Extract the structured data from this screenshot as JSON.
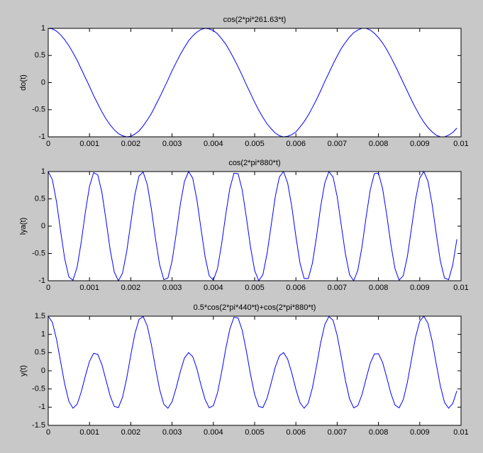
{
  "chart_data": [
    {
      "type": "line",
      "title": "cos(2*pi*261.63*t)",
      "y_label": "do(t)",
      "color": "#0000ff",
      "x": [
        0,
        0.0001,
        0.0002,
        0.0003,
        0.0004,
        0.0005,
        0.0006,
        0.0007,
        0.0008,
        0.0009,
        0.001,
        0.0011,
        0.0012,
        0.0013,
        0.0014,
        0.0015,
        0.0016,
        0.0017,
        0.0018,
        0.0019,
        0.002,
        0.0021,
        0.0022,
        0.0023,
        0.0024,
        0.0025,
        0.0026,
        0.0027,
        0.0028,
        0.0029,
        0.003,
        0.0031,
        0.0032,
        0.0033,
        0.0034,
        0.0035,
        0.0036,
        0.0037,
        0.0038,
        0.0039,
        0.004,
        0.0041,
        0.0042,
        0.0043,
        0.0044,
        0.0045,
        0.0046,
        0.0047,
        0.0048,
        0.0049,
        0.005,
        0.0051,
        0.0052,
        0.0053,
        0.0054,
        0.0055,
        0.0056,
        0.0057,
        0.0058,
        0.0059,
        0.006,
        0.0061,
        0.0062,
        0.0063,
        0.0064,
        0.0065,
        0.0066,
        0.0067,
        0.0068,
        0.0069,
        0.007,
        0.0071,
        0.0072,
        0.0073,
        0.0074,
        0.0075,
        0.0076,
        0.0077,
        0.0078,
        0.0079,
        0.008,
        0.0081,
        0.0082,
        0.0083,
        0.0084,
        0.0085,
        0.0086,
        0.0087,
        0.0088,
        0.0089,
        0.009,
        0.0091,
        0.0092,
        0.0093,
        0.0094,
        0.0095,
        0.0096,
        0.0097,
        0.0098,
        0.0099
      ],
      "values": [
        1,
        0.99,
        0.95,
        0.88,
        0.79,
        0.68,
        0.55,
        0.41,
        0.25,
        0.09,
        -0.07,
        -0.24,
        -0.39,
        -0.54,
        -0.67,
        -0.78,
        -0.87,
        -0.94,
        -0.98,
        -1,
        -0.99,
        -0.95,
        -0.89,
        -0.8,
        -0.69,
        -0.57,
        -0.42,
        -0.27,
        -0.11,
        0.05,
        0.22,
        0.37,
        0.52,
        0.65,
        0.77,
        0.86,
        0.93,
        0.98,
        1,
        0.99,
        0.96,
        0.9,
        0.81,
        0.71,
        0.58,
        0.44,
        0.29,
        0.13,
        -0.04,
        -0.2,
        -0.36,
        -0.51,
        -0.64,
        -0.76,
        -0.85,
        -0.93,
        -0.98,
        -1,
        -0.99,
        -0.96,
        -0.91,
        -0.82,
        -0.72,
        -0.6,
        -0.46,
        -0.31,
        -0.15,
        0.02,
        0.18,
        0.34,
        0.49,
        0.63,
        0.74,
        0.84,
        0.92,
        0.97,
        1,
        1,
        0.97,
        0.91,
        0.83,
        0.73,
        0.61,
        0.47,
        0.32,
        0.16,
        0,
        -0.16,
        -0.32,
        -0.47,
        -0.61,
        -0.73,
        -0.83,
        -0.91,
        -0.97,
        -1,
        -1,
        -0.97,
        -0.92,
        -0.84
      ],
      "xlim": [
        0,
        0.01
      ],
      "xticks": [
        0,
        0.001,
        0.002,
        0.003,
        0.004,
        0.005,
        0.006,
        0.007,
        0.008,
        0.009,
        0.01
      ],
      "ylim": [
        -1,
        1
      ],
      "yticks": [
        -1,
        -0.5,
        0,
        0.5,
        1
      ]
    },
    {
      "type": "line",
      "title": "cos(2*pi*880*t)",
      "y_label": "lya(t)",
      "color": "#0000ff",
      "x": [
        0,
        0.0001,
        0.0002,
        0.0003,
        0.0004,
        0.0005,
        0.0006,
        0.0007,
        0.0008,
        0.0009,
        0.001,
        0.0011,
        0.0012,
        0.0013,
        0.0014,
        0.0015,
        0.0016,
        0.0017,
        0.0018,
        0.0019,
        0.002,
        0.0021,
        0.0022,
        0.0023,
        0.0024,
        0.0025,
        0.0026,
        0.0027,
        0.0028,
        0.0029,
        0.003,
        0.0031,
        0.0032,
        0.0033,
        0.0034,
        0.0035,
        0.0036,
        0.0037,
        0.0038,
        0.0039,
        0.004,
        0.0041,
        0.0042,
        0.0043,
        0.0044,
        0.0045,
        0.0046,
        0.0047,
        0.0048,
        0.0049,
        0.005,
        0.0051,
        0.0052,
        0.0053,
        0.0054,
        0.0055,
        0.0056,
        0.0057,
        0.0058,
        0.0059,
        0.006,
        0.0061,
        0.0062,
        0.0063,
        0.0064,
        0.0065,
        0.0066,
        0.0067,
        0.0068,
        0.0069,
        0.007,
        0.0071,
        0.0072,
        0.0073,
        0.0074,
        0.0075,
        0.0076,
        0.0077,
        0.0078,
        0.0079,
        0.008,
        0.0081,
        0.0082,
        0.0083,
        0.0084,
        0.0085,
        0.0086,
        0.0087,
        0.0088,
        0.0089,
        0.009,
        0.0091,
        0.0092,
        0.0093,
        0.0094,
        0.0095,
        0.0096,
        0.0097,
        0.0098,
        0.0099
      ],
      "values": [
        1,
        0.85,
        0.45,
        -0.09,
        -0.6,
        -0.93,
        -0.99,
        -0.75,
        -0.29,
        0.26,
        0.73,
        0.98,
        0.94,
        0.62,
        0.11,
        -0.43,
        -0.84,
        -1,
        -0.86,
        -0.47,
        0.06,
        0.58,
        0.92,
        0.99,
        0.76,
        0.31,
        -0.24,
        -0.71,
        -0.98,
        -0.95,
        -0.64,
        -0.14,
        0.4,
        0.82,
        1,
        0.88,
        0.49,
        -0.04,
        -0.56,
        -0.91,
        -0.99,
        -0.78,
        -0.33,
        0.21,
        0.69,
        0.97,
        0.96,
        0.66,
        0.16,
        -0.38,
        -0.81,
        -1,
        -0.89,
        -0.51,
        0.01,
        0.54,
        0.9,
        1,
        0.79,
        0.36,
        -0.19,
        -0.68,
        -0.96,
        -0.96,
        -0.68,
        -0.19,
        0.36,
        0.79,
        1,
        0.9,
        0.54,
        0.01,
        -0.51,
        -0.89,
        -1,
        -0.81,
        -0.38,
        0.16,
        0.66,
        0.96,
        0.97,
        0.69,
        0.21,
        -0.33,
        -0.78,
        -0.99,
        -0.91,
        -0.56,
        -0.04,
        0.49,
        0.88,
        1,
        0.82,
        0.4,
        -0.14,
        -0.64,
        -0.95,
        -0.98,
        -0.71,
        -0.24
      ],
      "xlim": [
        0,
        0.01
      ],
      "xticks": [
        0,
        0.001,
        0.002,
        0.003,
        0.004,
        0.005,
        0.006,
        0.007,
        0.008,
        0.009,
        0.01
      ],
      "ylim": [
        -1,
        1
      ],
      "yticks": [
        -1,
        -0.5,
        0,
        0.5,
        1
      ]
    },
    {
      "type": "line",
      "title": "0.5*cos(2*pi*440*t)+cos(2*pi*880*t)",
      "y_label": "y(t)",
      "color": "#0000ff",
      "x": [
        0,
        0.0001,
        0.0002,
        0.0003,
        0.0004,
        0.0005,
        0.0006,
        0.0007,
        0.0008,
        0.0009,
        0.001,
        0.0011,
        0.0012,
        0.0013,
        0.0014,
        0.0015,
        0.0016,
        0.0017,
        0.0018,
        0.0019,
        0.002,
        0.0021,
        0.0022,
        0.0023,
        0.0024,
        0.0025,
        0.0026,
        0.0027,
        0.0028,
        0.0029,
        0.003,
        0.0031,
        0.0032,
        0.0033,
        0.0034,
        0.0035,
        0.0036,
        0.0037,
        0.0038,
        0.0039,
        0.004,
        0.0041,
        0.0042,
        0.0043,
        0.0044,
        0.0045,
        0.0046,
        0.0047,
        0.0048,
        0.0049,
        0.005,
        0.0051,
        0.0052,
        0.0053,
        0.0054,
        0.0055,
        0.0056,
        0.0057,
        0.0058,
        0.0059,
        0.006,
        0.0061,
        0.0062,
        0.0063,
        0.0064,
        0.0065,
        0.0066,
        0.0067,
        0.0068,
        0.0069,
        0.007,
        0.0071,
        0.0072,
        0.0073,
        0.0074,
        0.0075,
        0.0076,
        0.0077,
        0.0078,
        0.0079,
        0.008,
        0.0081,
        0.0082,
        0.0083,
        0.0084,
        0.0085,
        0.0086,
        0.0087,
        0.0088,
        0.0089,
        0.009,
        0.0091,
        0.0092,
        0.0093,
        0.0094,
        0.0095,
        0.0096,
        0.0097,
        0.0098,
        0.0099
      ],
      "values": [
        1.5,
        1.33,
        0.87,
        0.25,
        -0.37,
        -0.84,
        -1.03,
        -0.92,
        -0.58,
        -0.14,
        0.26,
        0.48,
        0.45,
        0.17,
        -0.26,
        -0.69,
        -0.98,
        -1.01,
        -0.73,
        -0.21,
        0.43,
        1.02,
        1.41,
        1.49,
        1.23,
        0.71,
        0.07,
        -0.52,
        -0.92,
        -1.03,
        -0.85,
        -0.47,
        -0.02,
        0.35,
        0.5,
        0.39,
        0.06,
        -0.39,
        -0.79,
        -1.02,
        -0.96,
        -0.61,
        -0.04,
        0.6,
        1.15,
        1.47,
        1.45,
        1.11,
        0.54,
        -0.1,
        -0.65,
        -0.98,
        -1.01,
        -0.76,
        -0.34,
        0.1,
        0.41,
        0.5,
        0.32,
        -0.06,
        -0.51,
        -0.88,
        -1.03,
        -0.89,
        -0.47,
        0.13,
        0.77,
        1.27,
        1.49,
        1.39,
        0.97,
        0.37,
        -0.27,
        -0.77,
        -1.02,
        -0.96,
        -0.66,
        -0.22,
        0.2,
        0.46,
        0.47,
        0.23,
        -0.18,
        -0.62,
        -0.94,
        -1.02,
        -0.8,
        -0.32,
        0.31,
        0.93,
        1.36,
        1.5,
        1.3,
        0.82,
        0.19,
        -0.42,
        -0.87,
        -1.03,
        -0.9,
        -0.55
      ],
      "xlim": [
        0,
        0.01
      ],
      "xticks": [
        0,
        0.001,
        0.002,
        0.003,
        0.004,
        0.005,
        0.006,
        0.007,
        0.008,
        0.009,
        0.01
      ],
      "ylim": [
        -1.5,
        1.5
      ],
      "yticks": [
        -1.5,
        -1,
        -0.5,
        0,
        0.5,
        1,
        1.5
      ]
    }
  ]
}
